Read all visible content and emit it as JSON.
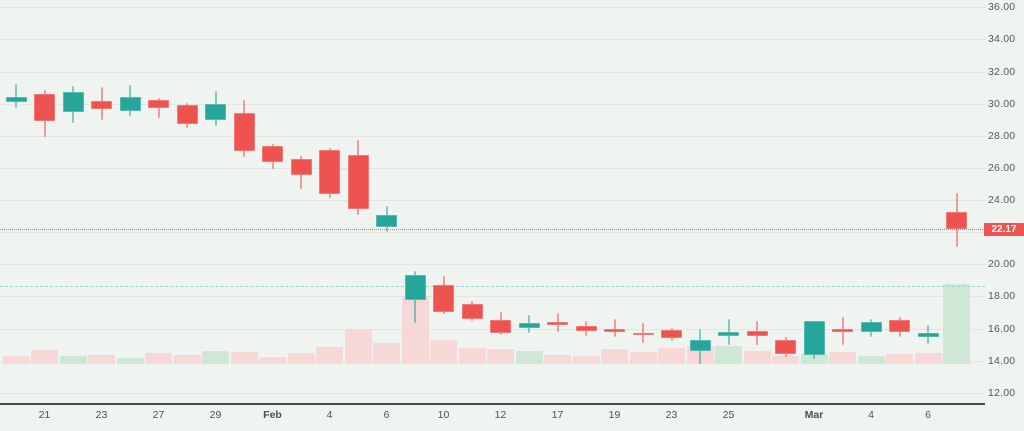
{
  "chart_data": {
    "type": "candlestick",
    "title": "",
    "xlabel": "",
    "ylabel": "",
    "ylim": [
      11.3,
      36.45
    ],
    "grid": "horizontal-only",
    "legend": "none",
    "last_price": 22.17,
    "last_price_label": "22.17",
    "candle_format": "open,high,low,close,volume_rel,volume_dir",
    "candles": [
      {
        "o": 30.1,
        "h": 31.25,
        "l": 29.7,
        "c": 30.4,
        "v": 8,
        "vd": "d"
      },
      {
        "o": 30.6,
        "h": 30.85,
        "l": 27.9,
        "c": 28.95,
        "v": 14,
        "vd": "d"
      },
      {
        "o": 29.45,
        "h": 31.1,
        "l": 28.8,
        "c": 30.7,
        "v": 8,
        "vd": "u"
      },
      {
        "o": 30.15,
        "h": 31.05,
        "l": 29.0,
        "c": 29.65,
        "v": 9,
        "vd": "d"
      },
      {
        "o": 29.55,
        "h": 31.15,
        "l": 29.2,
        "c": 30.4,
        "v": 6,
        "vd": "u"
      },
      {
        "o": 30.2,
        "h": 30.35,
        "l": 29.1,
        "c": 29.75,
        "v": 11,
        "vd": "d"
      },
      {
        "o": 29.9,
        "h": 30.05,
        "l": 28.5,
        "c": 28.7,
        "v": 9,
        "vd": "d"
      },
      {
        "o": 29.0,
        "h": 30.8,
        "l": 28.6,
        "c": 29.95,
        "v": 13,
        "vd": "u"
      },
      {
        "o": 29.4,
        "h": 30.2,
        "l": 26.7,
        "c": 27.05,
        "v": 12,
        "vd": "d"
      },
      {
        "o": 27.35,
        "h": 27.5,
        "l": 25.9,
        "c": 26.35,
        "v": 7,
        "vd": "d"
      },
      {
        "o": 26.55,
        "h": 26.75,
        "l": 24.7,
        "c": 25.55,
        "v": 11,
        "vd": "d"
      },
      {
        "o": 27.1,
        "h": 27.25,
        "l": 24.1,
        "c": 24.4,
        "v": 17,
        "vd": "d"
      },
      {
        "o": 26.8,
        "h": 27.75,
        "l": 23.05,
        "c": 23.45,
        "v": 35,
        "vd": "d"
      },
      {
        "o": 22.3,
        "h": 23.65,
        "l": 22.0,
        "c": 23.05,
        "v": 21,
        "vd": "d"
      },
      {
        "o": 17.75,
        "h": 19.6,
        "l": 16.35,
        "c": 19.35,
        "v": 68,
        "vd": "d"
      },
      {
        "o": 18.7,
        "h": 19.25,
        "l": 16.9,
        "c": 17.0,
        "v": 24,
        "vd": "d"
      },
      {
        "o": 17.55,
        "h": 17.7,
        "l": 16.45,
        "c": 16.6,
        "v": 16,
        "vd": "d"
      },
      {
        "o": 16.55,
        "h": 17.0,
        "l": 15.6,
        "c": 15.75,
        "v": 15,
        "vd": "d"
      },
      {
        "o": 16.0,
        "h": 16.85,
        "l": 15.7,
        "c": 16.35,
        "v": 13,
        "vd": "u"
      },
      {
        "o": 16.4,
        "h": 16.95,
        "l": 15.75,
        "c": 16.2,
        "v": 9,
        "vd": "d"
      },
      {
        "o": 16.15,
        "h": 16.5,
        "l": 15.55,
        "c": 15.85,
        "v": 8,
        "vd": "d"
      },
      {
        "o": 16.0,
        "h": 16.6,
        "l": 15.5,
        "c": 15.8,
        "v": 15,
        "vd": "d"
      },
      {
        "o": 15.75,
        "h": 16.35,
        "l": 15.1,
        "c": 15.6,
        "v": 12,
        "vd": "d"
      },
      {
        "o": 15.9,
        "h": 16.05,
        "l": 15.2,
        "c": 15.4,
        "v": 16,
        "vd": "d"
      },
      {
        "o": 14.6,
        "h": 15.95,
        "l": 13.8,
        "c": 15.3,
        "v": 18,
        "vd": "d"
      },
      {
        "o": 15.5,
        "h": 16.6,
        "l": 14.95,
        "c": 15.8,
        "v": 18,
        "vd": "u"
      },
      {
        "o": 15.85,
        "h": 16.5,
        "l": 15.0,
        "c": 15.55,
        "v": 13,
        "vd": "d"
      },
      {
        "o": 15.3,
        "h": 15.45,
        "l": 14.2,
        "c": 14.4,
        "v": 8,
        "vd": "d"
      },
      {
        "o": 14.35,
        "h": 16.5,
        "l": 14.1,
        "c": 16.45,
        "v": 10,
        "vd": "u"
      },
      {
        "o": 15.95,
        "h": 16.7,
        "l": 15.0,
        "c": 15.75,
        "v": 12,
        "vd": "d"
      },
      {
        "o": 15.75,
        "h": 16.6,
        "l": 15.45,
        "c": 16.4,
        "v": 8,
        "vd": "u"
      },
      {
        "o": 16.55,
        "h": 16.7,
        "l": 15.5,
        "c": 15.8,
        "v": 10,
        "vd": "d"
      },
      {
        "o": 15.45,
        "h": 16.2,
        "l": 15.05,
        "c": 15.75,
        "v": 11,
        "vd": "d"
      },
      {
        "o": 23.25,
        "h": 24.45,
        "l": 21.05,
        "c": 22.17,
        "v": 80,
        "vd": "u"
      }
    ],
    "x_labels": [
      {
        "i": 1,
        "label": "21"
      },
      {
        "i": 3,
        "label": "23"
      },
      {
        "i": 5,
        "label": "27"
      },
      {
        "i": 7,
        "label": "29"
      },
      {
        "i": 9,
        "label": "Feb",
        "month": true
      },
      {
        "i": 11,
        "label": "4"
      },
      {
        "i": 13,
        "label": "6"
      },
      {
        "i": 15,
        "label": "10"
      },
      {
        "i": 17,
        "label": "12"
      },
      {
        "i": 19,
        "label": "17"
      },
      {
        "i": 21,
        "label": "19"
      },
      {
        "i": 23,
        "label": "23"
      },
      {
        "i": 25,
        "label": "25"
      },
      {
        "i": 28,
        "label": "Mar",
        "month": true
      },
      {
        "i": 30,
        "label": "4"
      },
      {
        "i": 32,
        "label": "6"
      }
    ],
    "y_ticks": [
      {
        "v": 36,
        "label": "36.00"
      },
      {
        "v": 34,
        "label": "34.00"
      },
      {
        "v": 32,
        "label": "32.00"
      },
      {
        "v": 30,
        "label": "30.00"
      },
      {
        "v": 28,
        "label": "28.00"
      },
      {
        "v": 26,
        "label": "26.00"
      },
      {
        "v": 24,
        "label": "24.00"
      },
      {
        "v": 20,
        "label": "20.00"
      },
      {
        "v": 18,
        "label": "18.00"
      },
      {
        "v": 16,
        "label": "16.00"
      },
      {
        "v": 14,
        "label": "14.00"
      },
      {
        "v": 12,
        "label": "12.00"
      }
    ],
    "grid_levels": [
      36,
      34,
      32,
      30,
      28,
      26,
      24,
      22,
      20,
      18,
      16,
      14,
      12
    ],
    "overlay_lines": [
      {
        "price": 22.17,
        "style": "dotted",
        "color": "#ef5350",
        "name": "last-price-line"
      },
      {
        "price": 18.62,
        "style": "dashed",
        "color": "#8ccfc7",
        "name": "indicator-dashed-line"
      }
    ],
    "colors": {
      "up": "#26a69a",
      "down": "#ef5350",
      "vol_up": "#cfe8d6",
      "vol_down": "#f6d8d6",
      "background": "#f0f4f1",
      "badge_bg": "#ef5350",
      "badge_text": "#ffffff",
      "axis_text": "#4d5765",
      "axis_line": "#3f4b5c"
    }
  }
}
